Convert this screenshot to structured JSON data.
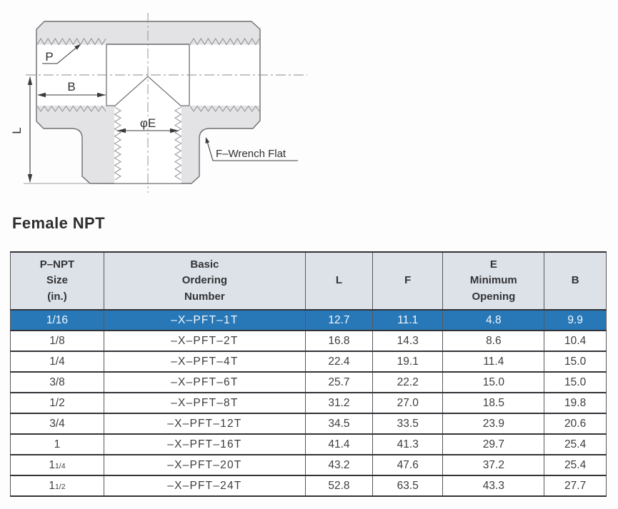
{
  "section_title": "Female NPT",
  "drawing": {
    "labels": {
      "p": "P",
      "b": "B",
      "l": "L",
      "phi_e": "φE",
      "wrench_flat": "F–Wrench Flat"
    },
    "colors": {
      "body_fill": "#e3e3e5",
      "outline": "#6f6f73",
      "thread": "#8f8f93",
      "dimension": "#3a3a3c"
    }
  },
  "table": {
    "colors": {
      "header_bg": "#dce2e8",
      "highlight_bg": "#2878b8",
      "highlight_text": "#f5f8fb",
      "cell_text": "#3d3d3f"
    },
    "columns": [
      {
        "id": "size",
        "lines": [
          "P–NPT",
          "Size",
          "(in.)"
        ]
      },
      {
        "id": "order",
        "lines": [
          "Basic",
          "Ordering",
          "Number"
        ]
      },
      {
        "id": "l",
        "lines": [
          "L"
        ]
      },
      {
        "id": "f",
        "lines": [
          "F"
        ]
      },
      {
        "id": "e",
        "lines": [
          "E",
          "Minimum",
          "Opening"
        ]
      },
      {
        "id": "b",
        "lines": [
          "B"
        ]
      }
    ],
    "rows": [
      {
        "size": "1/16",
        "size_frac": "",
        "order": "–X–PFT–1T",
        "l": "12.7",
        "f": "11.1",
        "e": "4.8",
        "b": "9.9",
        "highlight": true
      },
      {
        "size": "1/8",
        "size_frac": "",
        "order": "–X–PFT–2T",
        "l": "16.8",
        "f": "14.3",
        "e": "8.6",
        "b": "10.4",
        "highlight": false
      },
      {
        "size": "1/4",
        "size_frac": "",
        "order": "–X–PFT–4T",
        "l": "22.4",
        "f": "19.1",
        "e": "11.4",
        "b": "15.0",
        "highlight": false
      },
      {
        "size": "3/8",
        "size_frac": "",
        "order": "–X–PFT–6T",
        "l": "25.7",
        "f": "22.2",
        "e": "15.0",
        "b": "15.0",
        "highlight": false
      },
      {
        "size": "1/2",
        "size_frac": "",
        "order": "–X–PFT–8T",
        "l": "31.2",
        "f": "27.0",
        "e": "18.5",
        "b": "19.8",
        "highlight": false
      },
      {
        "size": "3/4",
        "size_frac": "",
        "order": "–X–PFT–12T",
        "l": "34.5",
        "f": "33.5",
        "e": "23.9",
        "b": "20.6",
        "highlight": false
      },
      {
        "size": "1",
        "size_frac": "",
        "order": "–X–PFT–16T",
        "l": "41.4",
        "f": "41.3",
        "e": "29.7",
        "b": "25.4",
        "highlight": false
      },
      {
        "size": "1",
        "size_frac": "1/4",
        "order": "–X–PFT–20T",
        "l": "43.2",
        "f": "47.6",
        "e": "37.2",
        "b": "25.4",
        "highlight": false
      },
      {
        "size": "1",
        "size_frac": "1/2",
        "order": "–X–PFT–24T",
        "l": "52.8",
        "f": "63.5",
        "e": "43.3",
        "b": "27.7",
        "highlight": false
      }
    ]
  }
}
